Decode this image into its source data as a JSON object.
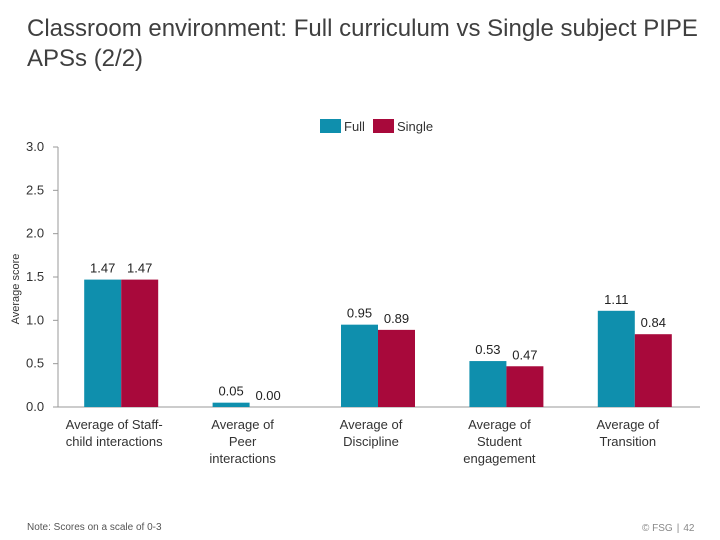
{
  "slide": {
    "title": "Classroom environment: Full curriculum vs Single subject PIPE APSs (2/2)",
    "note": "Note: Scores on a scale of 0-3",
    "copyright": "© FSG",
    "page_number": "42"
  },
  "chart_data": {
    "type": "bar",
    "title": "",
    "ylabel": "Average score",
    "xlabel": "",
    "ylim": [
      0,
      3.0
    ],
    "yticks": [
      "0.0",
      "0.5",
      "1.0",
      "1.5",
      "2.0",
      "2.5",
      "3.0"
    ],
    "grid": false,
    "legend_position": "top-center",
    "categories": [
      [
        "Average of Staff-",
        "child interactions"
      ],
      [
        "Average of",
        "Peer",
        "interactions"
      ],
      [
        "Average of",
        "Discipline"
      ],
      [
        "Average of",
        "Student",
        "engagement"
      ],
      [
        "Average of",
        "Transition"
      ]
    ],
    "series": [
      {
        "name": "Full",
        "color": "#0f8fad",
        "values": [
          1.47,
          0.05,
          0.95,
          0.53,
          1.11
        ],
        "labels": [
          "1.47",
          "0.05",
          "0.95",
          "0.53",
          "1.11"
        ]
      },
      {
        "name": "Single",
        "color": "#a8093b",
        "values": [
          1.47,
          0.0,
          0.89,
          0.47,
          0.84
        ],
        "labels": [
          "1.47",
          "0.00",
          "0.89",
          "0.47",
          "0.84"
        ]
      }
    ]
  }
}
